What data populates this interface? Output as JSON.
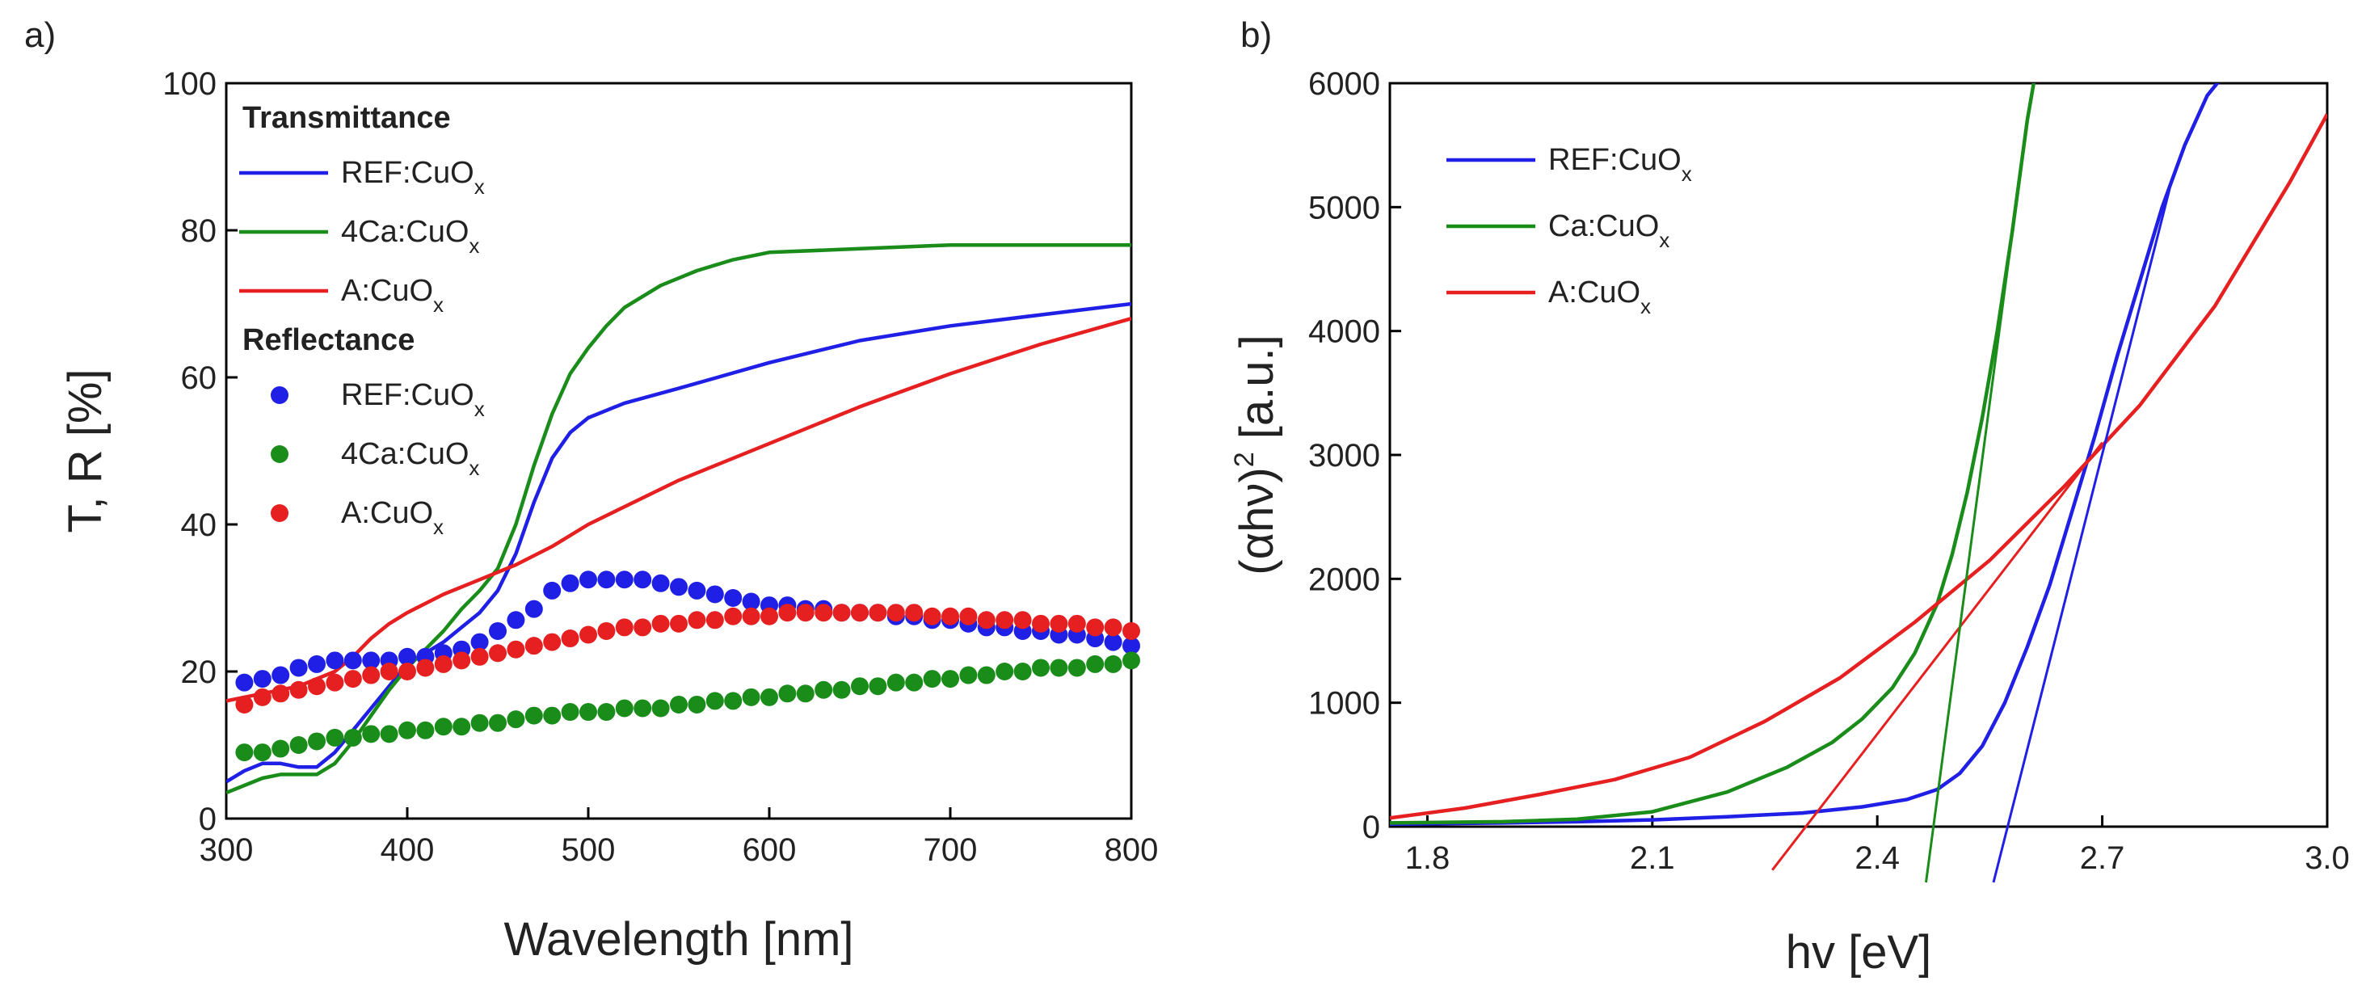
{
  "panels": [
    {
      "label": "a)",
      "chart_data": {
        "type": "line",
        "xlabel": "Wavelength [nm]",
        "ylabel": "T, R [%]",
        "xlim": [
          300,
          800
        ],
        "ylim": [
          0,
          100
        ],
        "xticks": [
          300,
          400,
          500,
          600,
          700,
          800
        ],
        "yticks": [
          0,
          20,
          40,
          60,
          80,
          100
        ],
        "grid": false,
        "legend_position": "top-left",
        "legend_groups": [
          {
            "title": "Transmittance",
            "entries": [
              {
                "text": "REF:CuO",
                "sub": "x",
                "marker": "line",
                "color": "#1f1fe6"
              },
              {
                "text": "4Ca:CuO",
                "sub": "x",
                "marker": "line",
                "color": "#1a8c1a"
              },
              {
                "text": "A:CuO",
                "sub": "x",
                "marker": "line",
                "color": "#e62020"
              }
            ]
          },
          {
            "title": "Reflectance",
            "entries": [
              {
                "text": "REF:CuO",
                "sub": "x",
                "marker": "dot",
                "color": "#1f1fe6"
              },
              {
                "text": "4Ca:CuO",
                "sub": "x",
                "marker": "dot",
                "color": "#1a8c1a"
              },
              {
                "text": "A:CuO",
                "sub": "x",
                "marker": "dot",
                "color": "#e62020"
              }
            ]
          }
        ],
        "series": [
          {
            "group": "Transmittance",
            "style": "line",
            "color": "#1f1fe6",
            "x": [
              300,
              310,
              320,
              330,
              340,
              350,
              360,
              370,
              380,
              390,
              400,
              410,
              420,
              430,
              440,
              450,
              460,
              470,
              480,
              490,
              500,
              520,
              550,
              600,
              650,
              700,
              750,
              800
            ],
            "y": [
              5,
              6.5,
              7.5,
              7.5,
              7,
              7,
              9,
              12,
              15,
              18,
              21,
              22.5,
              24,
              26,
              28,
              31,
              36,
              43,
              49,
              52.5,
              54.5,
              56.5,
              58.5,
              62,
              65,
              67,
              68.5,
              70
            ]
          },
          {
            "group": "Transmittance",
            "style": "line",
            "color": "#1a8c1a",
            "x": [
              300,
              310,
              320,
              330,
              340,
              350,
              360,
              370,
              380,
              390,
              400,
              410,
              420,
              430,
              440,
              450,
              460,
              470,
              480,
              490,
              500,
              510,
              520,
              540,
              560,
              580,
              600,
              650,
              700,
              750,
              800
            ],
            "y": [
              3.5,
              4.5,
              5.5,
              6,
              6,
              6,
              7.5,
              10.5,
              14,
              17.5,
              20.5,
              23,
              25.5,
              28.5,
              31,
              34,
              40,
              48,
              55,
              60.5,
              64,
              67,
              69.5,
              72.5,
              74.5,
              76,
              77,
              77.5,
              78,
              78,
              78
            ]
          },
          {
            "group": "Transmittance",
            "style": "line",
            "color": "#e62020",
            "x": [
              300,
              320,
              340,
              360,
              370,
              380,
              390,
              400,
              420,
              440,
              460,
              480,
              500,
              550,
              600,
              650,
              700,
              750,
              800
            ],
            "y": [
              16,
              17,
              18,
              20,
              22,
              24.5,
              26.5,
              28,
              30.5,
              32.5,
              34.5,
              37,
              40,
              46,
              51,
              56,
              60.5,
              64.5,
              68
            ]
          },
          {
            "group": "Reflectance",
            "style": "dot",
            "color": "#1f1fe6",
            "x": [
              310,
              320,
              330,
              340,
              350,
              360,
              370,
              380,
              390,
              400,
              410,
              420,
              430,
              440,
              450,
              460,
              470,
              480,
              490,
              500,
              510,
              520,
              530,
              540,
              550,
              560,
              570,
              580,
              590,
              600,
              610,
              620,
              630,
              640,
              650,
              660,
              670,
              680,
              690,
              700,
              710,
              720,
              730,
              740,
              750,
              760,
              770,
              780,
              790,
              800
            ],
            "y": [
              18.5,
              19,
              19.5,
              20.5,
              21,
              21.5,
              21.5,
              21.5,
              21.5,
              22,
              22,
              22.5,
              23,
              24,
              25.5,
              27,
              28.5,
              31,
              32,
              32.5,
              32.5,
              32.5,
              32.5,
              32,
              31.5,
              31,
              30.5,
              30,
              29.5,
              29,
              29,
              28.5,
              28.5,
              28,
              28,
              28,
              27.5,
              27.5,
              27,
              27,
              26.5,
              26,
              26,
              25.5,
              25.5,
              25,
              25,
              24.5,
              24,
              23.5
            ]
          },
          {
            "group": "Reflectance",
            "style": "dot",
            "color": "#1a8c1a",
            "x": [
              310,
              320,
              330,
              340,
              350,
              360,
              370,
              380,
              390,
              400,
              410,
              420,
              430,
              440,
              450,
              460,
              470,
              480,
              490,
              500,
              510,
              520,
              530,
              540,
              550,
              560,
              570,
              580,
              590,
              600,
              610,
              620,
              630,
              640,
              650,
              660,
              670,
              680,
              690,
              700,
              710,
              720,
              730,
              740,
              750,
              760,
              770,
              780,
              790,
              800
            ],
            "y": [
              9,
              9,
              9.5,
              10,
              10.5,
              11,
              11,
              11.5,
              11.5,
              12,
              12,
              12.5,
              12.5,
              13,
              13,
              13.5,
              14,
              14,
              14.5,
              14.5,
              14.5,
              15,
              15,
              15,
              15.5,
              15.5,
              16,
              16,
              16.5,
              16.5,
              17,
              17,
              17.5,
              17.5,
              18,
              18,
              18.5,
              18.5,
              19,
              19,
              19.5,
              19.5,
              20,
              20,
              20.5,
              20.5,
              20.5,
              21,
              21,
              21.5
            ]
          },
          {
            "group": "Reflectance",
            "style": "dot",
            "color": "#e62020",
            "x": [
              310,
              320,
              330,
              340,
              350,
              360,
              370,
              380,
              390,
              400,
              410,
              420,
              430,
              440,
              450,
              460,
              470,
              480,
              490,
              500,
              510,
              520,
              530,
              540,
              550,
              560,
              570,
              580,
              590,
              600,
              610,
              620,
              630,
              640,
              650,
              660,
              670,
              680,
              690,
              700,
              710,
              720,
              730,
              740,
              750,
              760,
              770,
              780,
              790,
              800
            ],
            "y": [
              15.5,
              16.5,
              17,
              17.5,
              18,
              18.5,
              19,
              19.5,
              20,
              20,
              20.5,
              21,
              21.5,
              22,
              22.5,
              23,
              23.5,
              24,
              24.5,
              25,
              25.5,
              26,
              26,
              26.5,
              26.5,
              27,
              27,
              27.5,
              27.5,
              27.5,
              28,
              28,
              28,
              28,
              28,
              28,
              28,
              28,
              27.5,
              27.5,
              27.5,
              27,
              27,
              27,
              26.5,
              26.5,
              26.5,
              26,
              26,
              25.5
            ]
          }
        ]
      }
    },
    {
      "label": "b)",
      "chart_data": {
        "type": "line",
        "xlabel": "hv [eV]",
        "ylabel": "(αhν)² [a.u.]",
        "ylabel_parts": {
          "main": "(αhν)",
          "sup": "2",
          "tail": " [a.u.]"
        },
        "xlim": [
          1.75,
          3.0
        ],
        "ylim": [
          0,
          6000
        ],
        "xticks": [
          1.8,
          2.1,
          2.4,
          2.7,
          3.0
        ],
        "xtick_labels": [
          "1.8",
          "2.1",
          "2.4",
          "2.7",
          "3.0"
        ],
        "yticks": [
          0,
          1000,
          2000,
          3000,
          4000,
          5000,
          6000
        ],
        "grid": false,
        "legend_position": "top-left",
        "legend": [
          {
            "text": "REF:CuO",
            "sub": "x",
            "color": "#1f1fe6"
          },
          {
            "text": "Ca:CuO",
            "sub": "x",
            "color": "#1a8c1a"
          },
          {
            "text": "A:CuO",
            "sub": "x",
            "color": "#e62020"
          }
        ],
        "series": [
          {
            "style": "line",
            "color": "#1f1fe6",
            "x": [
              1.75,
              1.9,
              2.0,
              2.1,
              2.2,
              2.3,
              2.38,
              2.44,
              2.48,
              2.51,
              2.54,
              2.57,
              2.6,
              2.63,
              2.66,
              2.69,
              2.72,
              2.75,
              2.78,
              2.81,
              2.84,
              2.86
            ],
            "y": [
              20,
              30,
              40,
              55,
              80,
              110,
              160,
              220,
              300,
              430,
              650,
              1000,
              1450,
              1950,
              2550,
              3150,
              3800,
              4400,
              5000,
              5500,
              5900,
              6050
            ]
          },
          {
            "style": "line",
            "color": "#1a8c1a",
            "x": [
              1.75,
              1.9,
              2.0,
              2.1,
              2.2,
              2.28,
              2.34,
              2.38,
              2.42,
              2.45,
              2.48,
              2.5,
              2.52,
              2.54,
              2.56,
              2.58,
              2.6,
              2.61
            ],
            "y": [
              30,
              40,
              60,
              120,
              280,
              480,
              680,
              870,
              1120,
              1400,
              1800,
              2200,
              2700,
              3300,
              4000,
              4800,
              5700,
              6050
            ]
          },
          {
            "style": "line",
            "color": "#e62020",
            "x": [
              1.75,
              1.85,
              1.95,
              2.05,
              2.15,
              2.25,
              2.35,
              2.45,
              2.55,
              2.65,
              2.75,
              2.85,
              2.95,
              3.0
            ],
            "y": [
              70,
              150,
              260,
              380,
              560,
              850,
              1200,
              1650,
              2150,
              2750,
              3400,
              4200,
              5200,
              5750
            ]
          },
          {
            "style": "fit-line",
            "color": "#e62020",
            "x": [
              2.26,
              2.7
            ],
            "y": [
              -350,
              3100
            ]
          },
          {
            "style": "fit-line",
            "color": "#1a8c1a",
            "x": [
              2.465,
              2.6
            ],
            "y": [
              -450,
              5700
            ]
          },
          {
            "style": "fit-line",
            "color": "#1f1fe6",
            "x": [
              2.555,
              2.79
            ],
            "y": [
              -450,
              5150
            ]
          }
        ]
      }
    }
  ]
}
